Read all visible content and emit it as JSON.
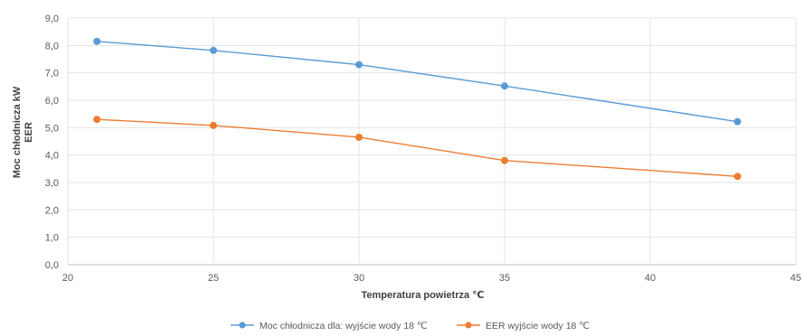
{
  "chart_data": {
    "type": "line",
    "title": "",
    "xlabel": "Temperatura powietrza ℃",
    "ylabel": "Moc chłodnicza kW",
    "ylabel2": "EER",
    "xlim": [
      20,
      45
    ],
    "ylim": [
      0,
      9
    ],
    "x_ticks": [
      "20",
      "25",
      "30",
      "35",
      "40",
      "45"
    ],
    "y_ticks": [
      "0,0",
      "1,0",
      "2,0",
      "3,0",
      "4,0",
      "5,0",
      "6,0",
      "7,0",
      "8,0",
      "9,0"
    ],
    "grid": true,
    "legend_position": "bottom",
    "series": [
      {
        "name": "Moc chłodnicza dla: wyjście wody 18 ℃",
        "color": "#5B9BD5",
        "x": [
          21,
          25,
          30,
          35,
          43
        ],
        "y": [
          8.15,
          7.82,
          7.3,
          6.52,
          5.22
        ]
      },
      {
        "name": "EER wyjście wody 18 ℃",
        "color": "#ED7D31",
        "x": [
          21,
          25,
          30,
          35,
          43
        ],
        "y": [
          5.3,
          5.08,
          4.65,
          3.8,
          3.22
        ]
      }
    ]
  }
}
